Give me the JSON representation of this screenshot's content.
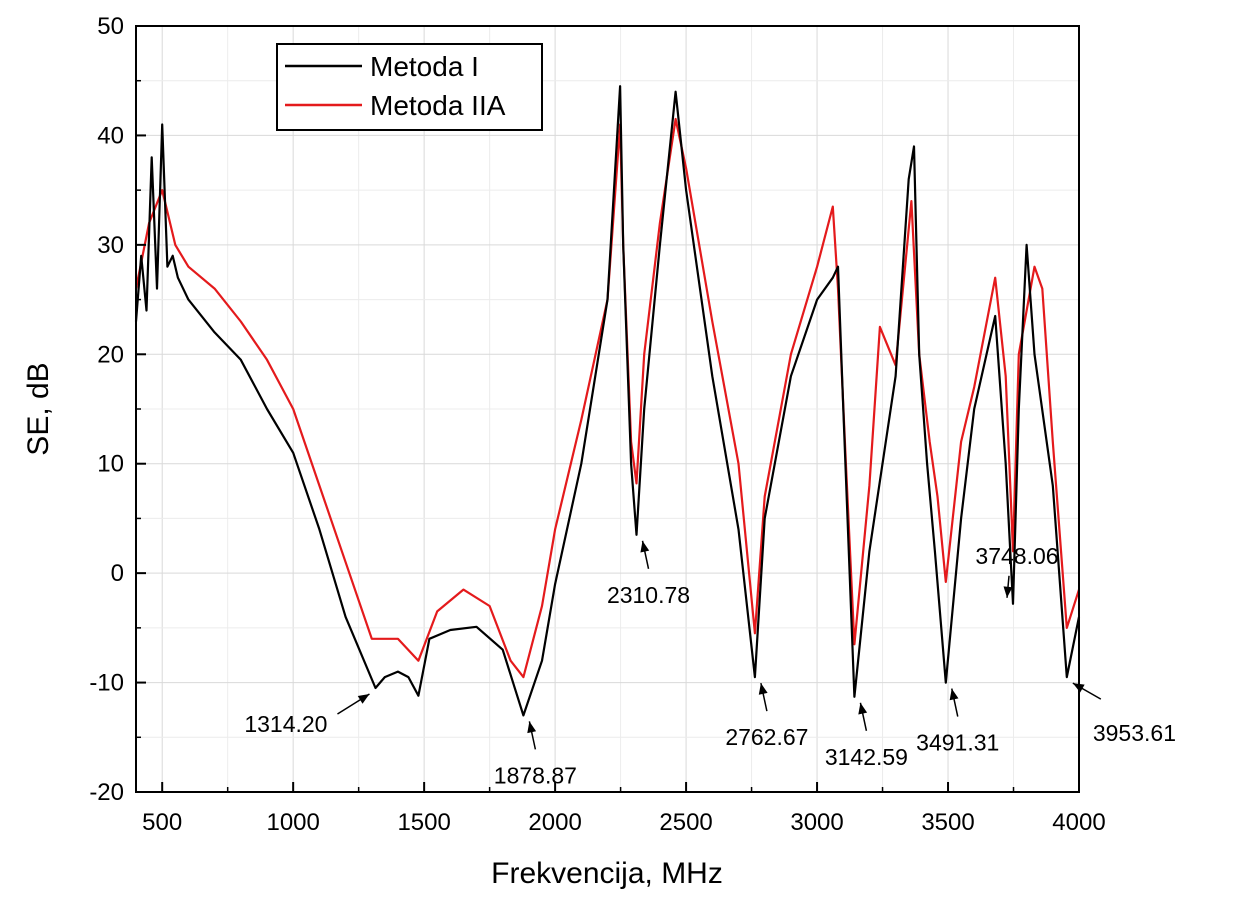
{
  "chart_data": {
    "type": "line",
    "xlabel": "Frekvencija, MHz",
    "ylabel": "SE, dB",
    "xlim": [
      400,
      4000
    ],
    "ylim": [
      -20,
      50
    ],
    "xticks": [
      500,
      1000,
      1500,
      2000,
      2500,
      3000,
      3500,
      4000
    ],
    "xtick_labels": [
      "500",
      "1000",
      "1500",
      "2000",
      "2500",
      "3000",
      "3500",
      "4000"
    ],
    "yticks": [
      -20,
      -10,
      0,
      10,
      20,
      30,
      40,
      50
    ],
    "ytick_labels": [
      "-20",
      "-10",
      "0",
      "10",
      "20",
      "30",
      "40",
      "50"
    ],
    "grid": true,
    "legend_position": "top-left",
    "series": [
      {
        "name": "Metoda I",
        "color": "#000000",
        "points": [
          [
            400,
            23
          ],
          [
            420,
            29
          ],
          [
            440,
            24
          ],
          [
            460,
            38
          ],
          [
            480,
            26
          ],
          [
            500,
            41
          ],
          [
            520,
            28
          ],
          [
            540,
            29
          ],
          [
            560,
            27
          ],
          [
            600,
            25
          ],
          [
            700,
            22
          ],
          [
            800,
            19.5
          ],
          [
            900,
            15
          ],
          [
            1000,
            11
          ],
          [
            1100,
            4
          ],
          [
            1200,
            -4
          ],
          [
            1314.2,
            -10.5
          ],
          [
            1350,
            -9.5
          ],
          [
            1400,
            -9
          ],
          [
            1440,
            -9.5
          ],
          [
            1478,
            -11.2
          ],
          [
            1520,
            -6
          ],
          [
            1600,
            -5.2
          ],
          [
            1700,
            -4.9
          ],
          [
            1800,
            -7
          ],
          [
            1878.87,
            -13
          ],
          [
            1950,
            -8
          ],
          [
            2000,
            -1
          ],
          [
            2100,
            10
          ],
          [
            2200,
            25
          ],
          [
            2248,
            44.5
          ],
          [
            2260,
            30
          ],
          [
            2290,
            10
          ],
          [
            2310.78,
            3.5
          ],
          [
            2340,
            15
          ],
          [
            2400,
            30
          ],
          [
            2460,
            44
          ],
          [
            2500,
            35
          ],
          [
            2600,
            18
          ],
          [
            2700,
            4
          ],
          [
            2762.67,
            -9.5
          ],
          [
            2800,
            5
          ],
          [
            2900,
            18
          ],
          [
            3000,
            25
          ],
          [
            3060,
            27
          ],
          [
            3080,
            28
          ],
          [
            3100,
            15
          ],
          [
            3142.59,
            -11.3
          ],
          [
            3200,
            2
          ],
          [
            3300,
            18
          ],
          [
            3350,
            36
          ],
          [
            3370,
            39
          ],
          [
            3390,
            20
          ],
          [
            3420,
            10
          ],
          [
            3450,
            2
          ],
          [
            3491.31,
            -10
          ],
          [
            3550,
            5
          ],
          [
            3600,
            15
          ],
          [
            3680,
            23.5
          ],
          [
            3720,
            10
          ],
          [
            3748.06,
            -2.8
          ],
          [
            3770,
            15
          ],
          [
            3800,
            30
          ],
          [
            3830,
            20
          ],
          [
            3900,
            8
          ],
          [
            3953.61,
            -9.5
          ],
          [
            4000,
            -4
          ]
        ]
      },
      {
        "name": "Metoda IIA",
        "color": "#e41a1c",
        "points": [
          [
            400,
            26
          ],
          [
            450,
            32
          ],
          [
            500,
            35
          ],
          [
            550,
            30
          ],
          [
            600,
            28
          ],
          [
            700,
            26
          ],
          [
            800,
            23
          ],
          [
            900,
            19.5
          ],
          [
            1000,
            15
          ],
          [
            1100,
            8
          ],
          [
            1200,
            1
          ],
          [
            1300,
            -6
          ],
          [
            1400,
            -6
          ],
          [
            1478,
            -8
          ],
          [
            1550,
            -3.5
          ],
          [
            1650,
            -1.5
          ],
          [
            1750,
            -3
          ],
          [
            1830,
            -8
          ],
          [
            1878.87,
            -9.5
          ],
          [
            1950,
            -3
          ],
          [
            2000,
            4
          ],
          [
            2100,
            14
          ],
          [
            2200,
            25
          ],
          [
            2248,
            41
          ],
          [
            2260,
            30
          ],
          [
            2290,
            12
          ],
          [
            2310.78,
            8.2
          ],
          [
            2340,
            20
          ],
          [
            2400,
            32
          ],
          [
            2460,
            41.5
          ],
          [
            2500,
            37
          ],
          [
            2600,
            23
          ],
          [
            2700,
            10
          ],
          [
            2762.67,
            -5.5
          ],
          [
            2800,
            7
          ],
          [
            2900,
            20
          ],
          [
            3000,
            28
          ],
          [
            3060,
            33.5
          ],
          [
            3080,
            26
          ],
          [
            3110,
            10
          ],
          [
            3142.59,
            -6.5
          ],
          [
            3200,
            8
          ],
          [
            3240,
            22.5
          ],
          [
            3300,
            19
          ],
          [
            3360,
            34
          ],
          [
            3390,
            20
          ],
          [
            3430,
            12
          ],
          [
            3460,
            7
          ],
          [
            3491.31,
            -0.8
          ],
          [
            3550,
            12
          ],
          [
            3600,
            17
          ],
          [
            3680,
            27
          ],
          [
            3720,
            18
          ],
          [
            3748.06,
            2
          ],
          [
            3770,
            20
          ],
          [
            3830,
            28
          ],
          [
            3860,
            26
          ],
          [
            3900,
            12
          ],
          [
            3953.61,
            -5
          ],
          [
            4000,
            -1.5
          ]
        ]
      }
    ],
    "annotations": [
      {
        "text": "1314.20",
        "x": 1314.2,
        "y": -10.5,
        "side": "left"
      },
      {
        "text": "1878.87",
        "x": 1878.87,
        "y": -13.0,
        "side": "below"
      },
      {
        "text": "2310.78",
        "x": 2310.78,
        "y": 3.5,
        "side": "below"
      },
      {
        "text": "2762.67",
        "x": 2762.67,
        "y": -9.5,
        "side": "below"
      },
      {
        "text": "3142.59",
        "x": 3142.59,
        "y": -11.3,
        "side": "below"
      },
      {
        "text": "3491.31",
        "x": 3491.31,
        "y": -10.0,
        "side": "below"
      },
      {
        "text": "3748.06",
        "x": 3748.06,
        "y": -2.8,
        "side": "below-left"
      },
      {
        "text": "3953.61",
        "x": 3953.61,
        "y": -9.5,
        "side": "right"
      }
    ]
  }
}
